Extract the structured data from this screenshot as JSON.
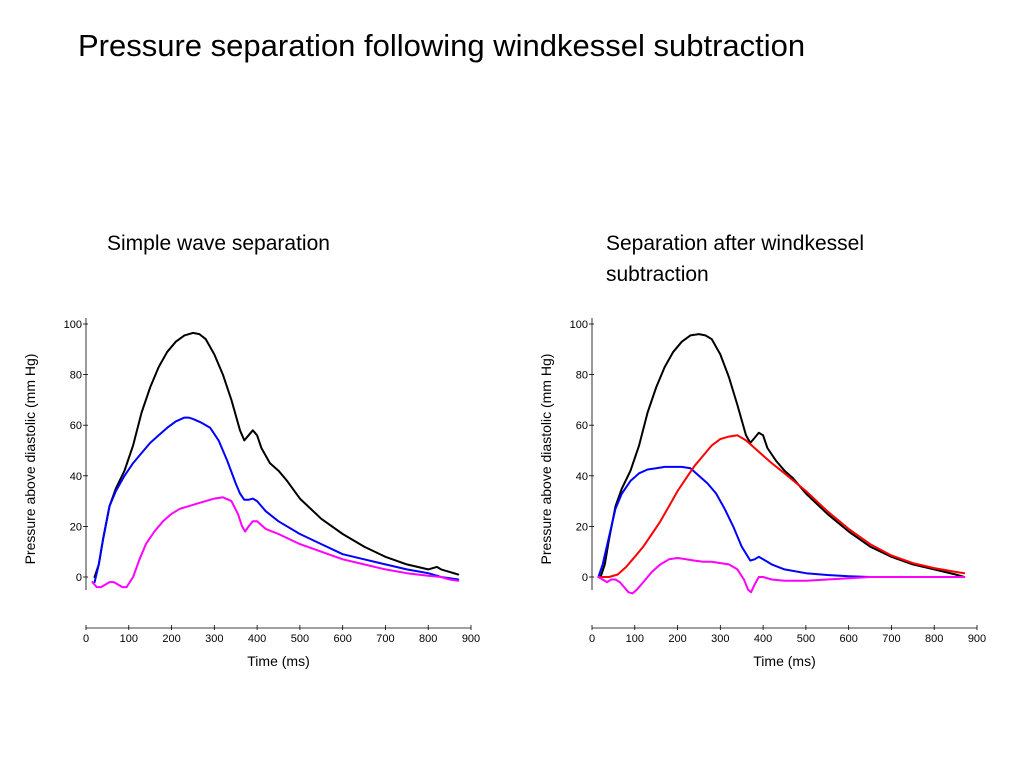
{
  "title": "Pressure separation following windkessel subtraction",
  "chart_data": [
    {
      "type": "line",
      "title": "Simple wave separation",
      "xlabel": "Time (ms)",
      "ylabel": "Pressure above diastolic (mm Hg)",
      "xlim": [
        0,
        900
      ],
      "ylim": [
        -5,
        100
      ],
      "xticks": [
        0,
        100,
        200,
        300,
        400,
        500,
        600,
        700,
        800,
        900
      ],
      "yticks": [
        0,
        20,
        40,
        60,
        80,
        100
      ],
      "grid": false,
      "series": [
        {
          "color": "#000000",
          "x": [
            20,
            30,
            40,
            55,
            70,
            90,
            110,
            130,
            150,
            170,
            190,
            210,
            230,
            250,
            265,
            280,
            300,
            320,
            340,
            360,
            370,
            380,
            390,
            400,
            410,
            430,
            450,
            470,
            500,
            550,
            600,
            650,
            700,
            750,
            800,
            820,
            830,
            850,
            870
          ],
          "y": [
            0,
            5,
            15,
            28,
            35,
            42,
            52,
            65,
            75,
            83,
            89,
            93,
            95.5,
            96.5,
            96,
            94,
            88,
            80,
            70,
            58,
            54,
            56,
            58,
            56,
            51,
            45,
            42,
            38,
            31,
            23,
            17,
            12,
            8,
            5,
            3,
            4,
            3,
            2,
            1
          ]
        },
        {
          "color": "#0000ff",
          "x": [
            20,
            30,
            40,
            55,
            70,
            90,
            110,
            130,
            150,
            170,
            190,
            210,
            230,
            240,
            250,
            270,
            290,
            310,
            330,
            350,
            360,
            370,
            380,
            390,
            400,
            420,
            450,
            500,
            550,
            600,
            650,
            700,
            750,
            800,
            830,
            850,
            870
          ],
          "y": [
            -2,
            5,
            15,
            28,
            34,
            40,
            45,
            49,
            53,
            56,
            59,
            61.5,
            63,
            63,
            62.5,
            61,
            59,
            54,
            46,
            37,
            33,
            30.5,
            30.5,
            31,
            30,
            26,
            22,
            17,
            13,
            9,
            7,
            5,
            3,
            1.5,
            0,
            -0.5,
            -1
          ]
        },
        {
          "color": "#ff00ff",
          "x": [
            15,
            25,
            35,
            45,
            55,
            65,
            75,
            85,
            95,
            110,
            125,
            140,
            160,
            180,
            200,
            220,
            240,
            260,
            280,
            300,
            320,
            340,
            355,
            365,
            372,
            380,
            390,
            400,
            420,
            450,
            500,
            550,
            600,
            650,
            700,
            750,
            800,
            830,
            850,
            870
          ],
          "y": [
            -2,
            -4,
            -4,
            -3,
            -2,
            -2,
            -3,
            -4,
            -4,
            0,
            7,
            13,
            18,
            22,
            25,
            27,
            28,
            29,
            30,
            31,
            31.5,
            30,
            25,
            20,
            18,
            20,
            22,
            22,
            19,
            17,
            13,
            10,
            7,
            5,
            3,
            1.5,
            0.5,
            0,
            -1,
            -1.5
          ]
        }
      ]
    },
    {
      "type": "line",
      "title": "Separation after windkessel subtraction",
      "xlabel": "Time (ms)",
      "ylabel": "Pressure above diastolic (mm Hg)",
      "xlim": [
        0,
        900
      ],
      "ylim": [
        -5,
        100
      ],
      "xticks": [
        0,
        100,
        200,
        300,
        400,
        500,
        600,
        700,
        800,
        900
      ],
      "yticks": [
        0,
        20,
        40,
        60,
        80,
        100
      ],
      "grid": false,
      "series": [
        {
          "color": "#000000",
          "x": [
            20,
            30,
            40,
            55,
            70,
            90,
            110,
            130,
            150,
            170,
            190,
            210,
            230,
            250,
            265,
            280,
            300,
            320,
            340,
            360,
            370,
            380,
            390,
            400,
            410,
            430,
            450,
            470,
            500,
            550,
            600,
            650,
            700,
            750,
            800,
            850,
            870
          ],
          "y": [
            0,
            5,
            15,
            28,
            35,
            42,
            52,
            65,
            75,
            83,
            89,
            93,
            95.5,
            96,
            95.5,
            94,
            88,
            79,
            68,
            56,
            53,
            55,
            57,
            56,
            51,
            46,
            42,
            39,
            33,
            25,
            18,
            12,
            8,
            5,
            3,
            1,
            0
          ]
        },
        {
          "color": "#0000ff",
          "x": [
            15,
            25,
            40,
            55,
            70,
            90,
            110,
            130,
            150,
            170,
            190,
            210,
            230,
            250,
            270,
            290,
            310,
            330,
            350,
            370,
            380,
            390,
            400,
            420,
            450,
            500,
            550,
            600,
            650,
            700,
            750,
            800,
            850,
            870
          ],
          "y": [
            0,
            5,
            16,
            27,
            33,
            38,
            41,
            42.5,
            43,
            43.5,
            43.5,
            43.5,
            43,
            40,
            37,
            33,
            27,
            20,
            12,
            6.5,
            7,
            8,
            7,
            5,
            3,
            1.5,
            0.8,
            0.3,
            0,
            0,
            0,
            0,
            0,
            0
          ]
        },
        {
          "color": "#ff0000",
          "x": [
            20,
            40,
            60,
            80,
            100,
            120,
            140,
            160,
            180,
            200,
            220,
            240,
            260,
            280,
            300,
            320,
            340,
            360,
            380,
            400,
            420,
            450,
            500,
            550,
            600,
            650,
            700,
            750,
            800,
            850,
            870
          ],
          "y": [
            0,
            0,
            1,
            4,
            8,
            12,
            17,
            22,
            28,
            34,
            39,
            44,
            48,
            52,
            54.5,
            55.5,
            56,
            54,
            51,
            48,
            45,
            41,
            34,
            26,
            19,
            13,
            8.5,
            5.5,
            3.5,
            2,
            1.5
          ]
        },
        {
          "color": "#ff00ff",
          "x": [
            15,
            25,
            35,
            45,
            55,
            65,
            75,
            85,
            95,
            105,
            120,
            140,
            160,
            180,
            200,
            220,
            240,
            260,
            280,
            300,
            320,
            340,
            355,
            365,
            372,
            380,
            390,
            400,
            420,
            450,
            500,
            550,
            600,
            650,
            700,
            750,
            800,
            850,
            870
          ],
          "y": [
            0,
            -1,
            -2,
            -1,
            -1,
            -2,
            -4,
            -6,
            -6.5,
            -5,
            -2,
            2,
            5,
            7,
            7.5,
            7,
            6.5,
            6,
            6,
            5.5,
            5,
            3,
            -1,
            -5,
            -6,
            -3,
            0,
            0,
            -1,
            -1.5,
            -1.5,
            -1,
            -0.5,
            0,
            0,
            0,
            0,
            0,
            0
          ]
        }
      ]
    }
  ]
}
